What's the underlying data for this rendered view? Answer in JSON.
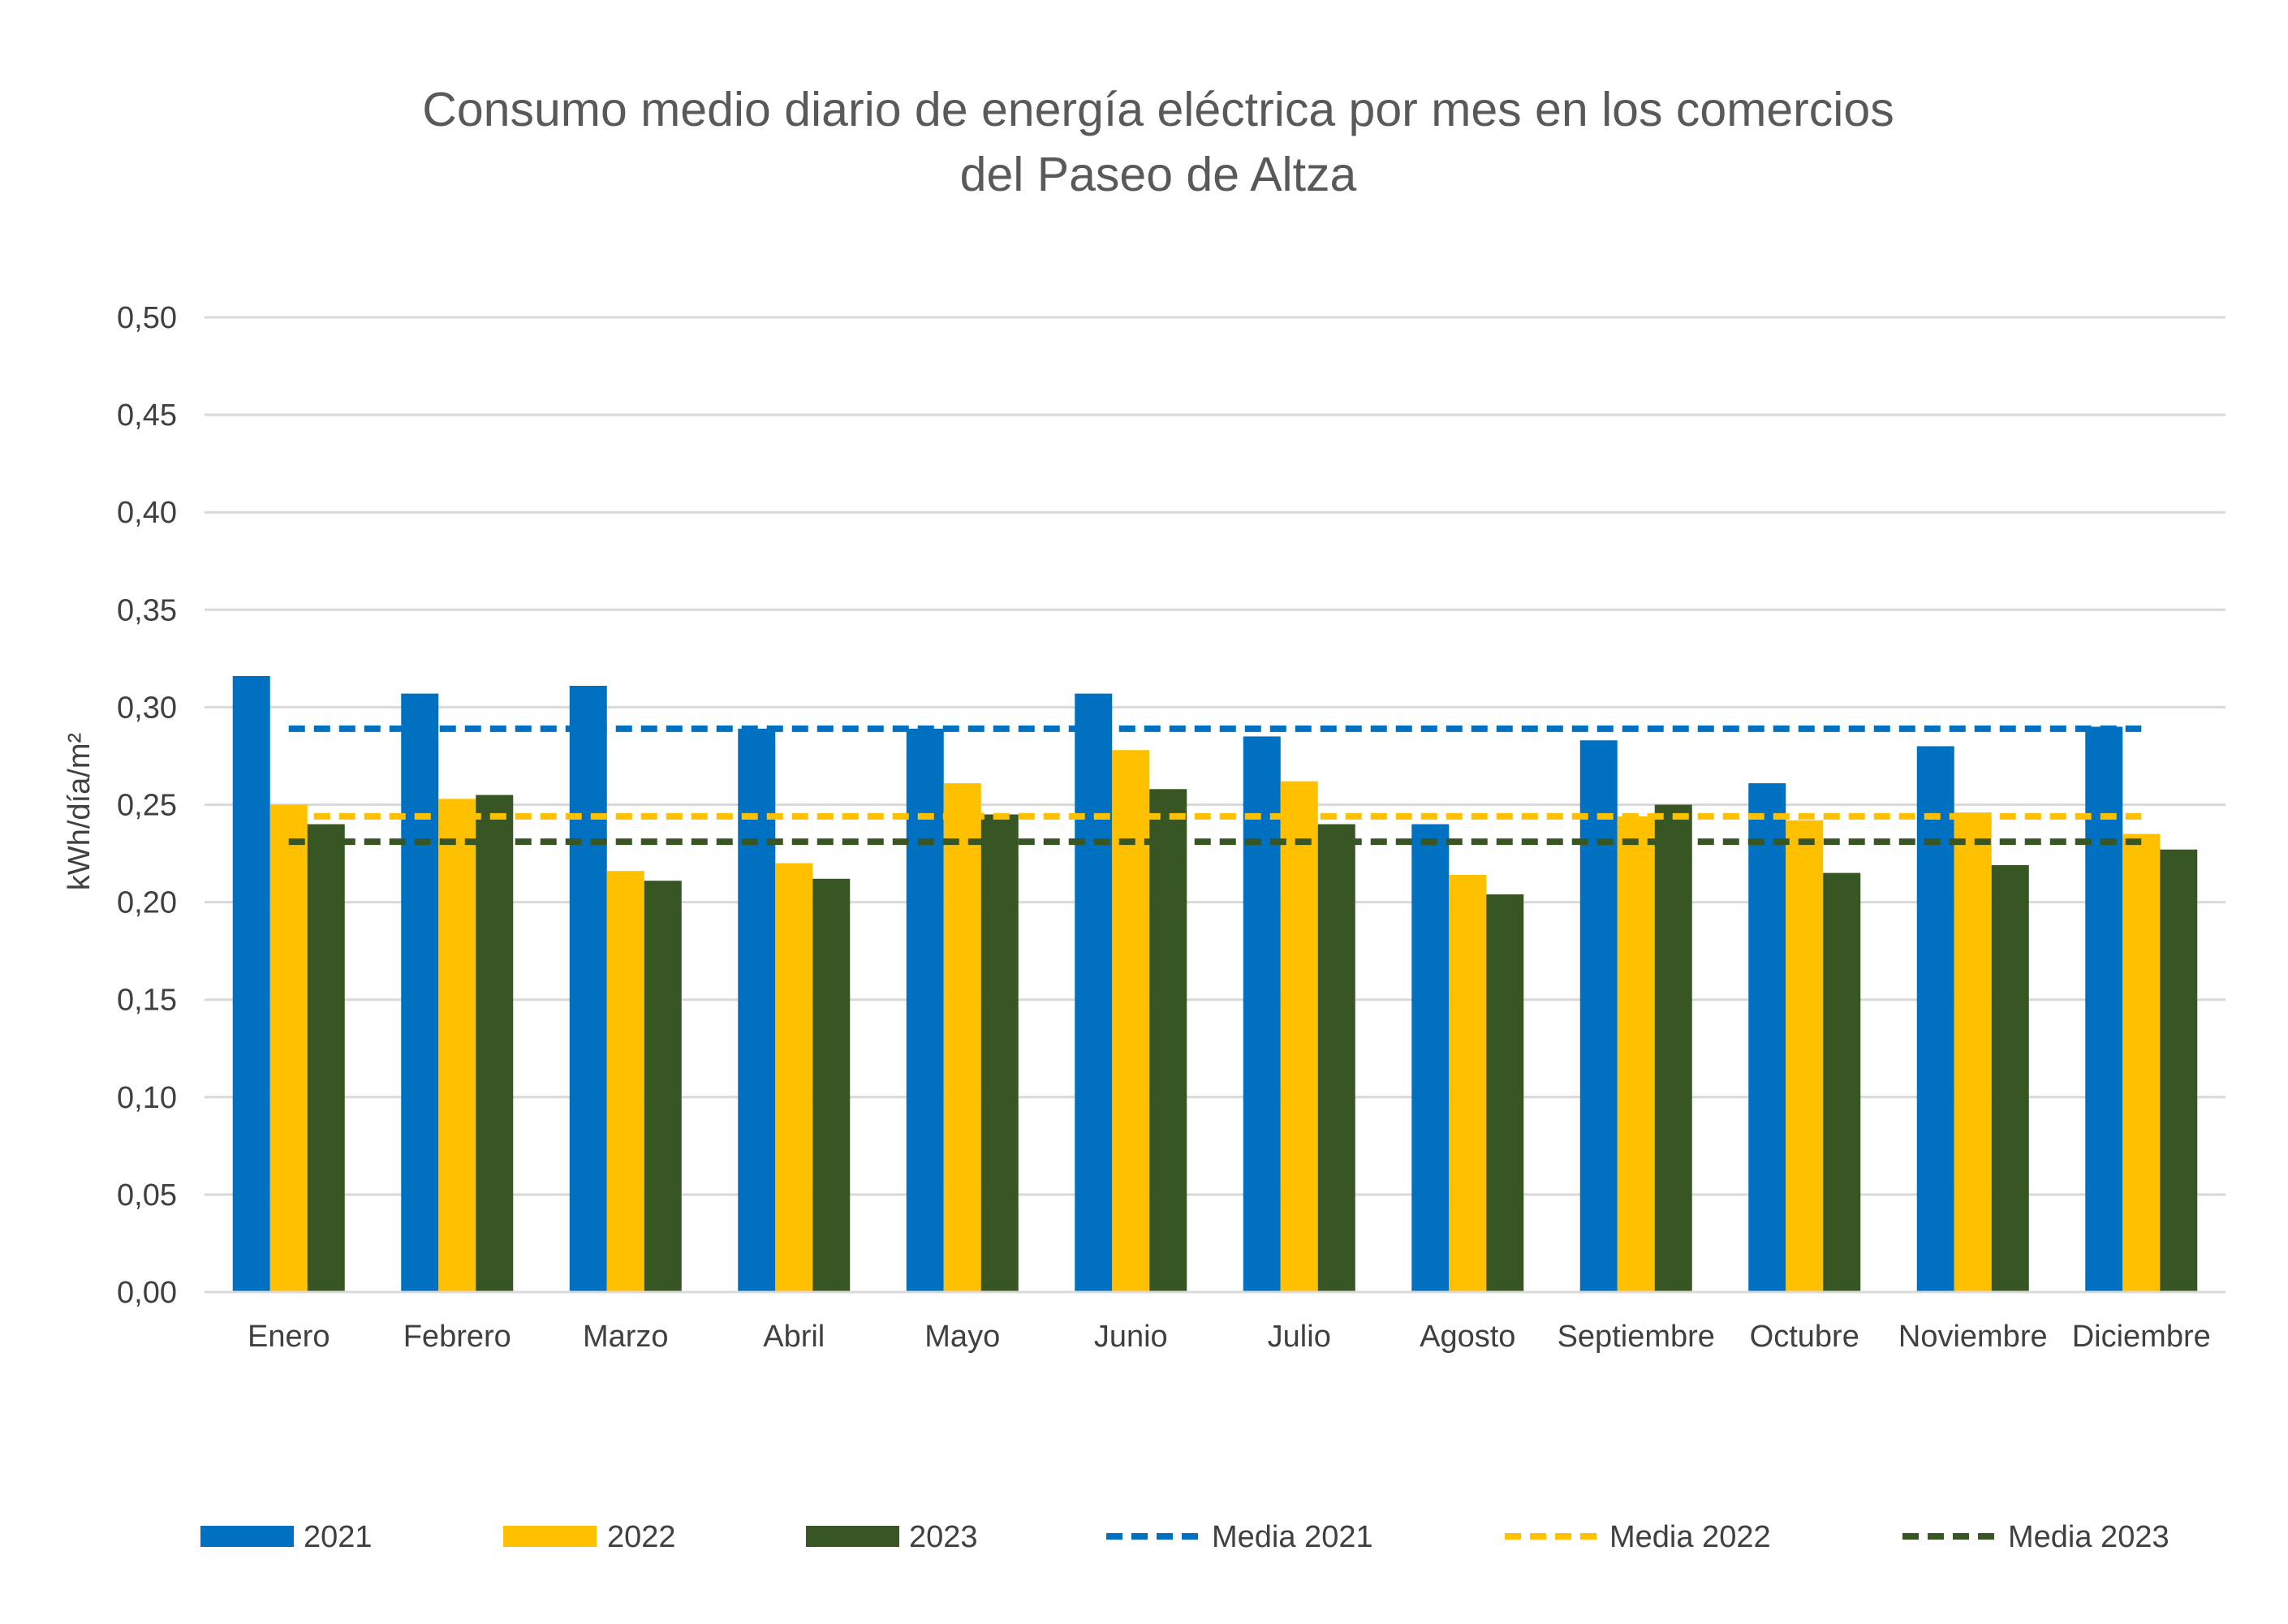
{
  "chart_data": {
    "type": "bar",
    "title_line1": "Consumo medio diario de energía eléctrica por mes en los comercios",
    "title_line2": "del Paseo de Altza",
    "xlabel": "",
    "ylabel": "kWh/día/m²",
    "ylim": [
      0,
      0.5
    ],
    "yticks": [
      "0,00",
      "0,05",
      "0,10",
      "0,15",
      "0,20",
      "0,25",
      "0,30",
      "0,35",
      "0,40",
      "0,45",
      "0,50"
    ],
    "grid": true,
    "legend_position": "bottom",
    "categories": [
      "Enero",
      "Febrero",
      "Marzo",
      "Abril",
      "Mayo",
      "Junio",
      "Julio",
      "Agosto",
      "Septiembre",
      "Octubre",
      "Noviembre",
      "Diciembre"
    ],
    "series": [
      {
        "name": "2021",
        "color": "#0070C0",
        "values": [
          0.316,
          0.307,
          0.311,
          0.289,
          0.289,
          0.307,
          0.285,
          0.24,
          0.283,
          0.261,
          0.28,
          0.29
        ]
      },
      {
        "name": "2022",
        "color": "#FFC000",
        "values": [
          0.25,
          0.253,
          0.216,
          0.22,
          0.261,
          0.278,
          0.262,
          0.214,
          0.244,
          0.242,
          0.246,
          0.235
        ]
      },
      {
        "name": "2023",
        "color": "#375623",
        "values": [
          0.24,
          0.255,
          0.211,
          0.212,
          0.245,
          0.258,
          0.24,
          0.204,
          0.25,
          0.215,
          0.219,
          0.227
        ]
      }
    ],
    "averages": [
      {
        "name": "Media 2021",
        "color": "#0070C0",
        "value": 0.289
      },
      {
        "name": "Media 2022",
        "color": "#FFC000",
        "value": 0.244
      },
      {
        "name": "Media 2023",
        "color": "#375623",
        "value": 0.231
      }
    ]
  }
}
